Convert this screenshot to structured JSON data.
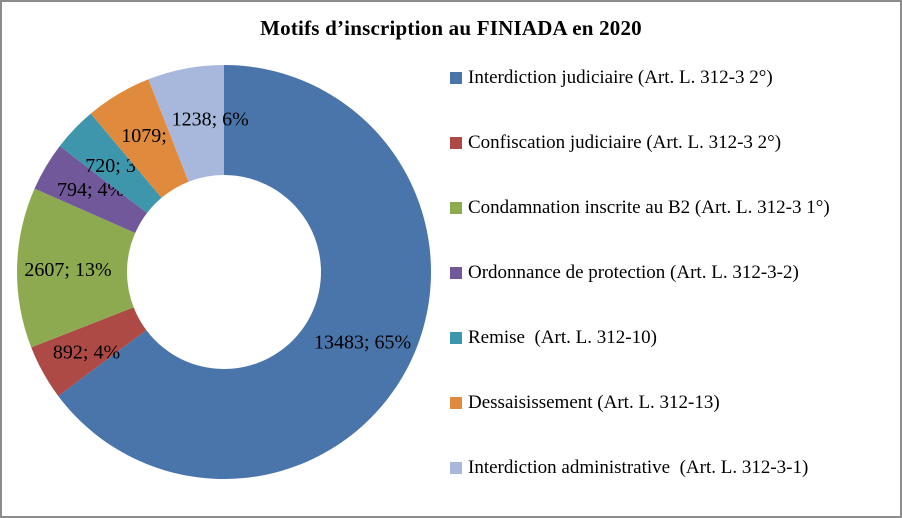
{
  "title": "Motifs d’inscription au FINIADA en 2020",
  "frame": {
    "border_color": "#8C8C8C",
    "background_color": "#FFFFFF"
  },
  "chart_data": {
    "type": "pie",
    "subtype": "donut",
    "title": "Motifs d’inscription au FINIADA en 2020",
    "direction": "clockwise",
    "start_angle": "top (12 o'clock)",
    "legend_position": "right",
    "total": 20813,
    "series": [
      {
        "label": "Interdiction judiciaire (Art. L. 312-3 2°)",
        "value": 13483,
        "percent": "65%",
        "data_label": "13483; 65%",
        "color": "#4A75AB"
      },
      {
        "label": "Confiscation judiciaire (Art. L. 312-3 2°)",
        "value": 892,
        "percent": "4%",
        "data_label": "892; 4%",
        "color": "#AE4A46"
      },
      {
        "label": "Condamnation inscrite au B2 (Art. L. 312-3 1°)",
        "value": 2607,
        "percent": "13%",
        "data_label": "2607; 13%",
        "color": "#8DAA51"
      },
      {
        "label": "Ordonnance de protection (Art. L. 312-3-2)",
        "value": 794,
        "percent": "4%",
        "data_label": "794; 4%",
        "color": "#71589A"
      },
      {
        "label": "Remise  (Art. L. 312-10)",
        "value": 720,
        "percent": "3%",
        "data_label": "720; 3%",
        "color": "#3D96AC"
      },
      {
        "label": "Dessaisissement (Art. L. 312-13)",
        "value": 1079,
        "percent": "5%",
        "data_label": "1079; 5%",
        "color": "#E08A3D"
      },
      {
        "label": "Interdiction administrative  (Art. L. 312-3-1)",
        "value": 1238,
        "percent": "6%",
        "data_label": "1238; 6%",
        "color": "#A7B8DC"
      }
    ]
  }
}
